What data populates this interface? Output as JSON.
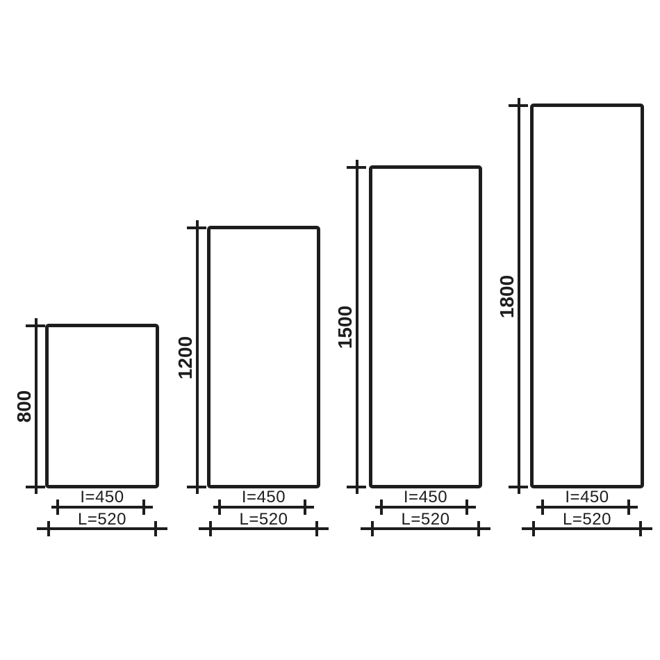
{
  "colors": {
    "ink": "#1d1d1d",
    "background": "#ffffff"
  },
  "diagram": {
    "type": "dimensioned-technical-drawing",
    "shared_inner_width_mm": 450,
    "shared_outer_width_mm": 520
  },
  "modules": [
    {
      "height_label": "800",
      "height_mm": 800,
      "inner_width_label": "I=450",
      "inner_width_mm": 450,
      "outer_width_label": "L=520",
      "outer_width_mm": 520
    },
    {
      "height_label": "1200",
      "height_mm": 1200,
      "inner_width_label": "I=450",
      "inner_width_mm": 450,
      "outer_width_label": "L=520",
      "outer_width_mm": 520
    },
    {
      "height_label": "1500",
      "height_mm": 1500,
      "inner_width_label": "I=450",
      "inner_width_mm": 450,
      "outer_width_label": "L=520",
      "outer_width_mm": 520
    },
    {
      "height_label": "1800",
      "height_mm": 1800,
      "inner_width_label": "I=450",
      "inner_width_mm": 450,
      "outer_width_label": "L=520",
      "outer_width_mm": 520
    }
  ]
}
